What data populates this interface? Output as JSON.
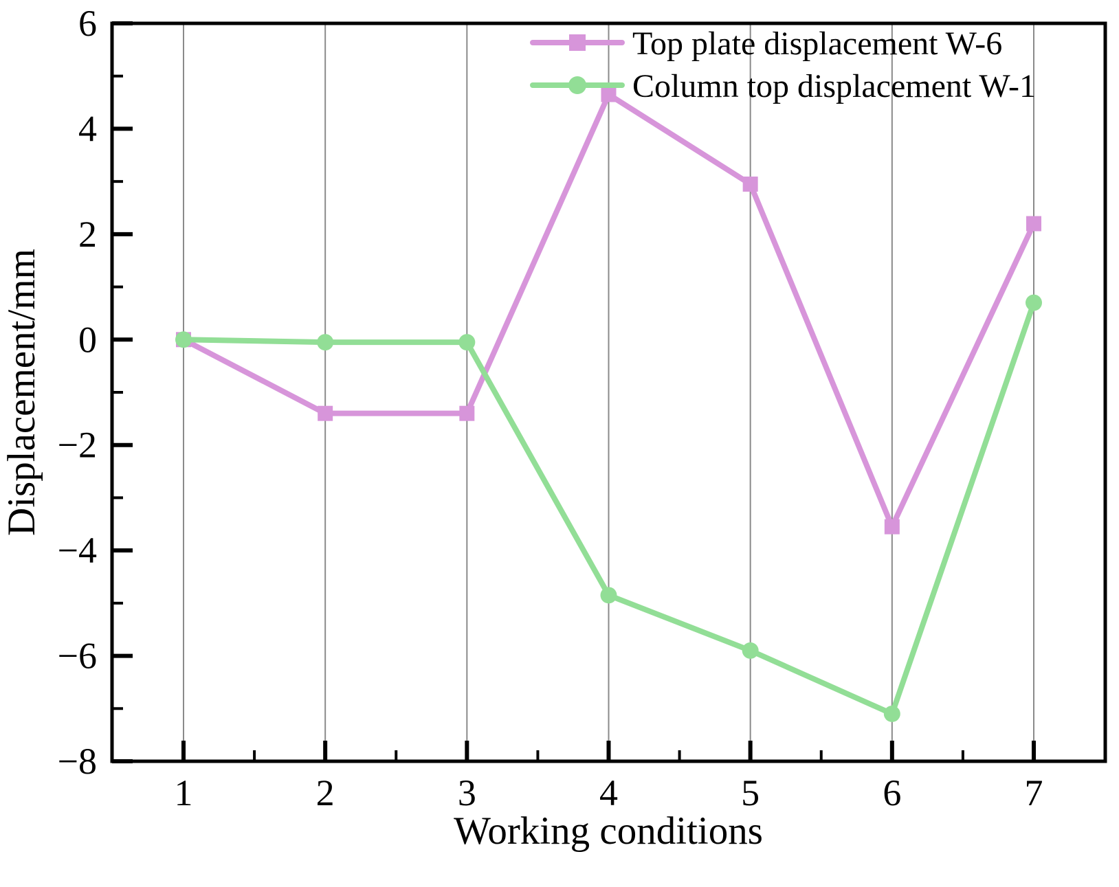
{
  "chart_data": {
    "type": "line",
    "title": "",
    "xlabel": "Working conditions",
    "ylabel": "Displacement/mm",
    "x": [
      1,
      2,
      3,
      4,
      5,
      6,
      7
    ],
    "xticks": [
      1,
      2,
      3,
      4,
      5,
      6,
      7
    ],
    "yticks": [
      -8,
      -6,
      -4,
      -2,
      0,
      2,
      4,
      6
    ],
    "ylim": [
      -8,
      6
    ],
    "xlim": [
      0.5,
      7.5
    ],
    "grid": "vertical-gridlines-only",
    "legend_position": "top-inside",
    "series": [
      {
        "name": "Top plate displacement W-6",
        "marker": "square",
        "color": "#d795da",
        "values": [
          0,
          -1.4,
          -1.4,
          4.65,
          2.95,
          -3.55,
          2.2
        ]
      },
      {
        "name": "Column top displacement W-1",
        "marker": "circle",
        "color": "#92de96",
        "values": [
          0,
          -0.05,
          -0.05,
          -4.85,
          -5.9,
          -7.1,
          0.7
        ]
      }
    ],
    "colors": {
      "axis": "#000000",
      "gridline": "#8a8a8a",
      "background": "#ffffff",
      "text": "#000000"
    }
  }
}
